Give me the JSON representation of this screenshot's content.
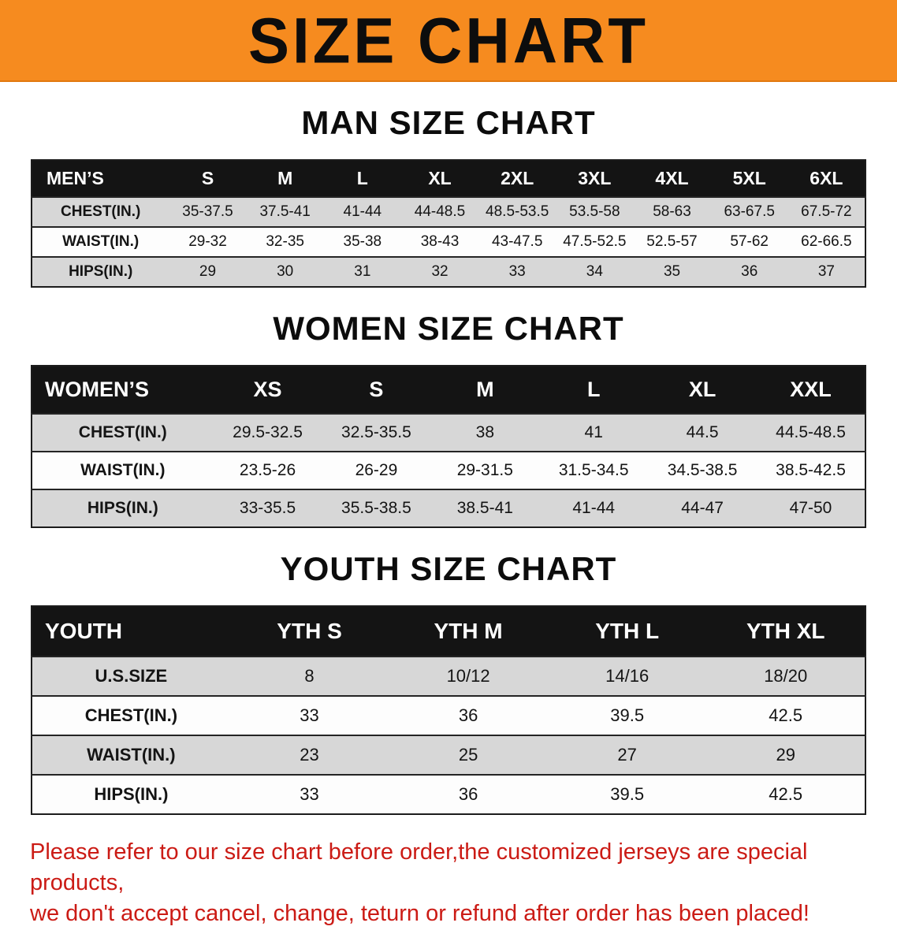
{
  "banner": {
    "title": "SIZE CHART"
  },
  "colors": {
    "banner_bg": "#f68b1f",
    "table_header_bg": "#141414",
    "row_gray": "#d7d7d7",
    "disclaimer_red": "#cb1b15"
  },
  "sections": {
    "men": {
      "heading": "MAN SIZE CHART",
      "table": {
        "header": [
          "MEN’S",
          "S",
          "M",
          "L",
          "XL",
          "2XL",
          "3XL",
          "4XL",
          "5XL",
          "6XL"
        ],
        "rows": [
          {
            "label": "CHEST(IN.)",
            "values": [
              "35-37.5",
              "37.5-41",
              "41-44",
              "44-48.5",
              "48.5-53.5",
              "53.5-58",
              "58-63",
              "63-67.5",
              "67.5-72"
            ]
          },
          {
            "label": "WAIST(IN.)",
            "values": [
              "29-32",
              "32-35",
              "35-38",
              "38-43",
              "43-47.5",
              "47.5-52.5",
              "52.5-57",
              "57-62",
              "62-66.5"
            ]
          },
          {
            "label": "HIPS(IN.)",
            "values": [
              "29",
              "30",
              "31",
              "32",
              "33",
              "34",
              "35",
              "36",
              "37"
            ]
          }
        ]
      }
    },
    "women": {
      "heading": "WOMEN SIZE CHART",
      "table": {
        "header": [
          "WOMEN’S",
          "XS",
          "S",
          "M",
          "L",
          "XL",
          "XXL"
        ],
        "rows": [
          {
            "label": "CHEST(IN.)",
            "values": [
              "29.5-32.5",
              "32.5-35.5",
              "38",
              "41",
              "44.5",
              "44.5-48.5"
            ]
          },
          {
            "label": "WAIST(IN.)",
            "values": [
              "23.5-26",
              "26-29",
              "29-31.5",
              "31.5-34.5",
              "34.5-38.5",
              "38.5-42.5"
            ]
          },
          {
            "label": "HIPS(IN.)",
            "values": [
              "33-35.5",
              "35.5-38.5",
              "38.5-41",
              "41-44",
              "44-47",
              "47-50"
            ]
          }
        ]
      }
    },
    "youth": {
      "heading": "YOUTH SIZE CHART",
      "table": {
        "header": [
          "YOUTH",
          "YTH S",
          "YTH M",
          "YTH L",
          "YTH XL"
        ],
        "rows": [
          {
            "label": "U.S.SIZE",
            "values": [
              "8",
              "10/12",
              "14/16",
              "18/20"
            ]
          },
          {
            "label": "CHEST(IN.)",
            "values": [
              "33",
              "36",
              "39.5",
              "42.5"
            ]
          },
          {
            "label": "WAIST(IN.)",
            "values": [
              "23",
              "25",
              "27",
              "29"
            ]
          },
          {
            "label": "HIPS(IN.)",
            "values": [
              "33",
              "36",
              "39.5",
              "42.5"
            ]
          }
        ]
      }
    }
  },
  "footer": {
    "line1": "Please refer to our size chart before order,the customized jerseys are special products,",
    "line2": "we don't accept cancel, change, teturn or refund after order has been placed!"
  }
}
